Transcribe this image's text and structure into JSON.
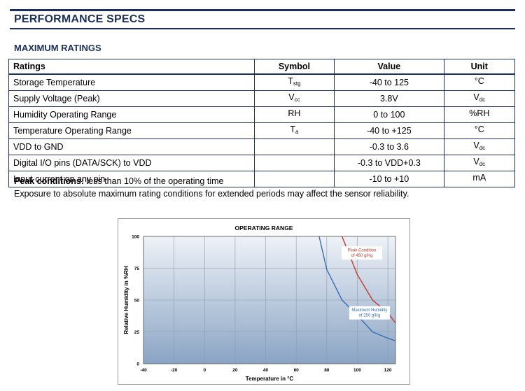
{
  "header": {
    "title": "PERFORMANCE SPECS",
    "subtitle": "MAXIMUM RATINGS"
  },
  "table": {
    "headers": [
      "Ratings",
      "Symbol",
      "Value",
      "Unit"
    ],
    "rows": [
      {
        "rating": "Storage Temperature",
        "symbol_main": "T",
        "symbol_sub": "stg",
        "value": "-40 to 125",
        "unit_main": "°C",
        "unit_sub": ""
      },
      {
        "rating": "Supply Voltage (Peak)",
        "symbol_main": "V",
        "symbol_sub": "cc",
        "value": "3.8V",
        "unit_main": "V",
        "unit_sub": "dc"
      },
      {
        "rating": "Humidity Operating Range",
        "symbol_main": "RH",
        "symbol_sub": "",
        "value": "0 to 100",
        "unit_main": "%RH",
        "unit_sub": ""
      },
      {
        "rating": "Temperature Operating Range",
        "symbol_main": "T",
        "symbol_sub": "a",
        "value": "-40 to +125",
        "unit_main": "°C",
        "unit_sub": ""
      },
      {
        "rating": "VDD to GND",
        "symbol_main": "",
        "symbol_sub": "",
        "value": "-0.3 to 3.6",
        "unit_main": "V",
        "unit_sub": "dc"
      },
      {
        "rating": "Digital I/O pins (DATA/SCK) to VDD",
        "symbol_main": "",
        "symbol_sub": "",
        "value": "-0.3 to VDD+0.3",
        "unit_main": "V",
        "unit_sub": "dc"
      },
      {
        "rating": "Input current on any pin",
        "symbol_main": "",
        "symbol_sub": "",
        "value": "-10 to +10",
        "unit_main": "mA",
        "unit_sub": ""
      }
    ]
  },
  "notes": {
    "peak_label": "Peak conditions:",
    "peak_text": " less than 10% of the operating time",
    "exposure": "Exposure to absolute maximum rating conditions for extended periods may affect the sensor reliability."
  },
  "chart_data": {
    "type": "line",
    "title": "OPERATING RANGE",
    "xlabel": "Temperature in °C",
    "ylabel": "Relative Humidity in %RH",
    "xlim": [
      -40,
      125
    ],
    "ylim": [
      0,
      100
    ],
    "xticks": [
      -40,
      -20,
      0,
      20,
      40,
      60,
      80,
      100,
      120
    ],
    "yticks": [
      0,
      25,
      50,
      75,
      100
    ],
    "grid": true,
    "series": [
      {
        "name": "Maximum Humidity of 250 g/Kg",
        "color": "#2f6fb5",
        "x": [
          75,
          80,
          90,
          100,
          110,
          120,
          125
        ],
        "y": [
          100,
          74,
          50,
          38,
          25,
          20,
          18
        ]
      },
      {
        "name": "Peak Condition of 450 g/Kg",
        "color": "#c0392b",
        "x": [
          90,
          100,
          110,
          120,
          125
        ],
        "y": [
          100,
          70,
          50,
          40,
          32
        ]
      }
    ],
    "annotations": [
      {
        "lines": [
          "Peak Condition",
          "of 450 g/Kg"
        ],
        "color": "#c0392b",
        "at": [
          103,
          87
        ]
      },
      {
        "lines": [
          "Maximum Humidity",
          "of 250 g/Kg"
        ],
        "color": "#2f6fb5",
        "at": [
          108,
          40
        ]
      }
    ],
    "colors": {
      "plot_top": "#eef2f7",
      "plot_bottom": "#8aa4c4",
      "grid": "#8c9aac"
    }
  }
}
